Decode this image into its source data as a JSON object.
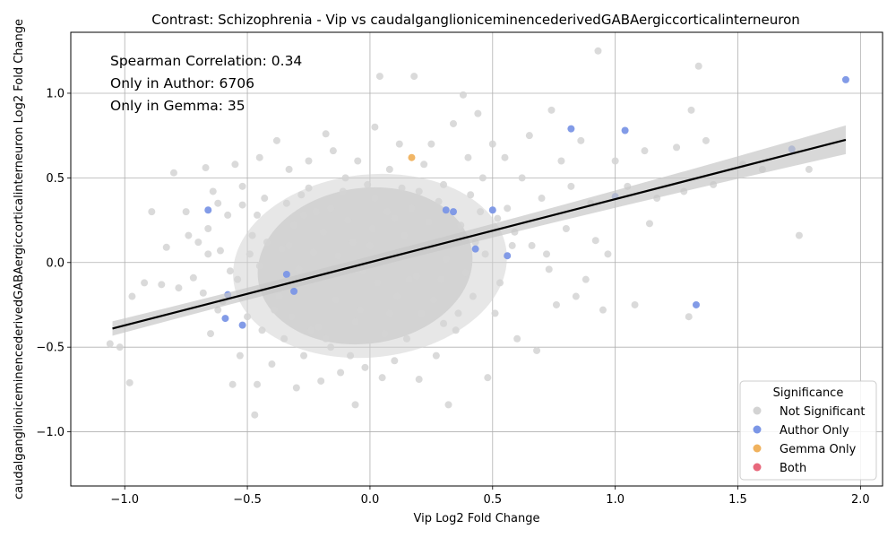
{
  "chart_data": {
    "type": "scatter",
    "title": "Contrast: Schizophrenia - Vip vs caudalganglioniceminencederivedGABAergiccorticalinterneuron",
    "xlabel": "Vip Log2 Fold Change",
    "ylabel": "caudalganglioniceminencederivedGABAergiccorticalinterneuron Log2 Fold Change",
    "xlim": [
      -1.22,
      2.09
    ],
    "ylim": [
      -1.32,
      1.36
    ],
    "x_ticks": [
      -1.0,
      -0.5,
      0.0,
      0.5,
      1.0,
      1.5,
      2.0
    ],
    "x_tick_labels": [
      "−1.0",
      "−0.5",
      "0.0",
      "0.5",
      "1.0",
      "1.5",
      "2.0"
    ],
    "y_ticks": [
      -1.0,
      -0.5,
      0.0,
      0.5,
      1.0
    ],
    "y_tick_labels": [
      "−1.0",
      "−0.5",
      "0.0",
      "0.5",
      "1.0"
    ],
    "grid": true,
    "annotations": [
      "Spearman Correlation: 0.34",
      "Only in Author: 6706",
      "Only in Gemma: 35"
    ],
    "legend": {
      "title": "Significance",
      "placement": "lower-right",
      "entries": [
        {
          "label": "Not Significant",
          "color": "#d3d3d3"
        },
        {
          "label": "Author Only",
          "color": "#7b96e6"
        },
        {
          "label": "Gemma Only",
          "color": "#f0b25e"
        },
        {
          "label": "Both",
          "color": "#e8687c"
        }
      ]
    },
    "regression": {
      "x": [
        -1.05,
        1.94
      ],
      "y": [
        -0.39,
        0.725
      ],
      "color": "#000000"
    },
    "series": [
      {
        "name": "Not Significant",
        "color": "#d3d3d3",
        "points": [
          [
            -1.06,
            -0.48
          ],
          [
            -1.02,
            -0.5
          ],
          [
            -0.98,
            -0.71
          ],
          [
            -0.97,
            -0.2
          ],
          [
            -0.89,
            0.3
          ],
          [
            -0.85,
            -0.13
          ],
          [
            -0.83,
            0.09
          ],
          [
            -0.8,
            0.53
          ],
          [
            -0.78,
            -0.15
          ],
          [
            -0.74,
            0.16
          ],
          [
            -0.72,
            -0.09
          ],
          [
            -0.7,
            0.12
          ],
          [
            -0.67,
            0.56
          ],
          [
            -0.66,
            0.05
          ],
          [
            -0.65,
            -0.42
          ],
          [
            -0.64,
            0.42
          ],
          [
            -0.62,
            0.35
          ],
          [
            -0.6,
            -0.23
          ],
          [
            -0.58,
            0.28
          ],
          [
            -0.56,
            -0.72
          ],
          [
            -0.55,
            0.58
          ],
          [
            -0.53,
            -0.55
          ],
          [
            -0.52,
            0.45
          ],
          [
            -0.48,
            0.16
          ],
          [
            -0.47,
            -0.9
          ],
          [
            -0.46,
            -0.72
          ],
          [
            -0.45,
            0.62
          ],
          [
            -0.43,
            0.38
          ],
          [
            -0.4,
            -0.6
          ],
          [
            -0.38,
            0.72
          ],
          [
            -0.35,
            -0.45
          ],
          [
            -0.33,
            0.55
          ],
          [
            -0.3,
            -0.74
          ],
          [
            -0.28,
            0.4
          ],
          [
            -0.27,
            -0.55
          ],
          [
            -0.25,
            0.6
          ],
          [
            -0.24,
            -0.4
          ],
          [
            -0.22,
            0.3
          ],
          [
            -0.2,
            -0.7
          ],
          [
            -0.18,
            0.76
          ],
          [
            -0.16,
            -0.5
          ],
          [
            -0.15,
            0.66
          ],
          [
            -0.12,
            -0.65
          ],
          [
            -0.1,
            0.5
          ],
          [
            -0.08,
            -0.55
          ],
          [
            -0.06,
            -0.84
          ],
          [
            -0.05,
            0.6
          ],
          [
            -0.02,
            -0.62
          ],
          [
            0.02,
            0.8
          ],
          [
            0.04,
            1.1
          ],
          [
            0.05,
            -0.68
          ],
          [
            0.08,
            0.55
          ],
          [
            0.1,
            -0.58
          ],
          [
            0.12,
            0.7
          ],
          [
            0.15,
            -0.45
          ],
          [
            0.18,
            1.1
          ],
          [
            0.2,
            -0.69
          ],
          [
            0.22,
            0.58
          ],
          [
            0.25,
            0.7
          ],
          [
            0.27,
            -0.55
          ],
          [
            0.3,
            0.46
          ],
          [
            0.32,
            -0.84
          ],
          [
            0.34,
            0.82
          ],
          [
            0.36,
            -0.3
          ],
          [
            0.38,
            0.99
          ],
          [
            0.4,
            0.62
          ],
          [
            0.42,
            -0.2
          ],
          [
            0.44,
            0.88
          ],
          [
            0.46,
            0.5
          ],
          [
            0.48,
            -0.68
          ],
          [
            0.5,
            0.7
          ],
          [
            0.52,
            0.26
          ],
          [
            0.55,
            0.62
          ],
          [
            0.58,
            0.1
          ],
          [
            0.6,
            -0.45
          ],
          [
            0.62,
            0.5
          ],
          [
            0.65,
            0.75
          ],
          [
            0.68,
            -0.52
          ],
          [
            0.7,
            0.38
          ],
          [
            0.72,
            0.05
          ],
          [
            0.74,
            0.9
          ],
          [
            0.76,
            -0.25
          ],
          [
            0.78,
            0.6
          ],
          [
            0.8,
            0.2
          ],
          [
            0.82,
            0.45
          ],
          [
            0.84,
            -0.2
          ],
          [
            0.86,
            0.72
          ],
          [
            0.88,
            -0.1
          ],
          [
            0.9,
            0.35
          ],
          [
            0.92,
            0.13
          ],
          [
            0.93,
            1.25
          ],
          [
            0.95,
            -0.28
          ],
          [
            0.97,
            0.05
          ],
          [
            1.0,
            0.6
          ],
          [
            1.05,
            0.45
          ],
          [
            1.08,
            -0.25
          ],
          [
            1.12,
            0.66
          ],
          [
            1.14,
            0.23
          ],
          [
            1.17,
            0.38
          ],
          [
            1.25,
            0.68
          ],
          [
            1.28,
            0.42
          ],
          [
            1.3,
            -0.32
          ],
          [
            1.31,
            0.9
          ],
          [
            1.34,
            1.16
          ],
          [
            1.37,
            0.72
          ],
          [
            1.4,
            0.46
          ],
          [
            1.52,
            0.58
          ],
          [
            1.6,
            0.55
          ],
          [
            1.75,
            0.16
          ],
          [
            1.79,
            0.55
          ],
          [
            -0.92,
            -0.12
          ],
          [
            -0.75,
            0.3
          ],
          [
            -0.68,
            -0.18
          ],
          [
            -0.61,
            0.07
          ],
          [
            -0.5,
            -0.32
          ],
          [
            -0.42,
            0.12
          ],
          [
            -0.37,
            -0.2
          ],
          [
            -0.31,
            0.22
          ],
          [
            -0.26,
            -0.12
          ],
          [
            -0.19,
            0.18
          ],
          [
            -0.14,
            -0.22
          ],
          [
            -0.09,
            0.25
          ],
          [
            -0.04,
            -0.28
          ],
          [
            0.0,
            0.1
          ],
          [
            0.03,
            -0.12
          ],
          [
            0.07,
            0.3
          ],
          [
            0.11,
            -0.2
          ],
          [
            0.14,
            0.16
          ],
          [
            0.19,
            -0.08
          ],
          [
            0.24,
            0.24
          ],
          [
            0.29,
            -0.1
          ],
          [
            0.33,
            0.14
          ],
          [
            0.39,
            -0.06
          ],
          [
            0.45,
            0.3
          ],
          [
            0.53,
            -0.12
          ],
          [
            0.59,
            0.18
          ],
          [
            0.66,
            0.1
          ],
          [
            0.73,
            -0.04
          ],
          [
            -0.57,
            -0.05
          ],
          [
            -0.44,
            -0.4
          ],
          [
            -0.34,
            0.35
          ],
          [
            -0.21,
            -0.38
          ],
          [
            -0.11,
            0.42
          ],
          [
            0.06,
            -0.42
          ],
          [
            0.13,
            0.44
          ],
          [
            0.21,
            -0.3
          ],
          [
            0.28,
            0.36
          ],
          [
            0.35,
            -0.4
          ],
          [
            0.43,
            0.12
          ],
          [
            0.51,
            -0.3
          ],
          [
            -0.66,
            0.2
          ],
          [
            -0.54,
            -0.1
          ],
          [
            -0.49,
            0.05
          ],
          [
            -0.41,
            -0.15
          ],
          [
            -0.36,
            0.08
          ],
          [
            -0.29,
            -0.04
          ],
          [
            -0.23,
            0.06
          ],
          [
            -0.17,
            -0.08
          ],
          [
            -0.13,
            0.04
          ],
          [
            -0.07,
            0.12
          ],
          [
            -0.03,
            -0.05
          ],
          [
            0.01,
            0.2
          ],
          [
            0.09,
            0.05
          ],
          [
            0.16,
            -0.1
          ],
          [
            0.23,
            0.1
          ],
          [
            0.31,
            0.02
          ],
          [
            0.37,
            0.22
          ],
          [
            0.41,
            0.4
          ],
          [
            0.47,
            0.05
          ],
          [
            0.56,
            0.32
          ],
          [
            -0.46,
            0.28
          ],
          [
            -0.39,
            -0.28
          ],
          [
            -0.32,
            -0.32
          ],
          [
            -0.25,
            0.44
          ],
          [
            -0.18,
            -0.45
          ],
          [
            -0.06,
            -0.35
          ],
          [
            0.02,
            0.38
          ],
          [
            0.1,
            0.26
          ],
          [
            0.17,
            0.32
          ],
          [
            0.26,
            -0.22
          ],
          [
            -0.62,
            -0.28
          ],
          [
            -0.52,
            0.34
          ],
          [
            -0.45,
            -0.02
          ],
          [
            -0.33,
            0.1
          ],
          [
            -0.27,
            0.28
          ],
          [
            -0.16,
            0.32
          ],
          [
            -0.01,
            0.46
          ],
          [
            0.08,
            -0.3
          ],
          [
            0.2,
            0.42
          ],
          [
            0.3,
            -0.36
          ]
        ]
      },
      {
        "name": "Author Only",
        "color": "#7b96e6",
        "points": [
          [
            -0.66,
            0.31
          ],
          [
            -0.59,
            -0.33
          ],
          [
            -0.58,
            -0.19
          ],
          [
            -0.52,
            -0.37
          ],
          [
            -0.34,
            -0.07
          ],
          [
            -0.31,
            -0.17
          ],
          [
            0.31,
            0.31
          ],
          [
            0.34,
            0.3
          ],
          [
            0.43,
            0.08
          ],
          [
            0.5,
            0.31
          ],
          [
            0.56,
            0.04
          ],
          [
            0.82,
            0.79
          ],
          [
            1.0,
            0.39
          ],
          [
            1.04,
            0.78
          ],
          [
            1.33,
            -0.25
          ],
          [
            1.72,
            0.67
          ],
          [
            1.94,
            1.08
          ]
        ]
      },
      {
        "name": "Gemma Only",
        "color": "#f0b25e",
        "points": [
          [
            0.17,
            0.62
          ]
        ]
      }
    ]
  }
}
